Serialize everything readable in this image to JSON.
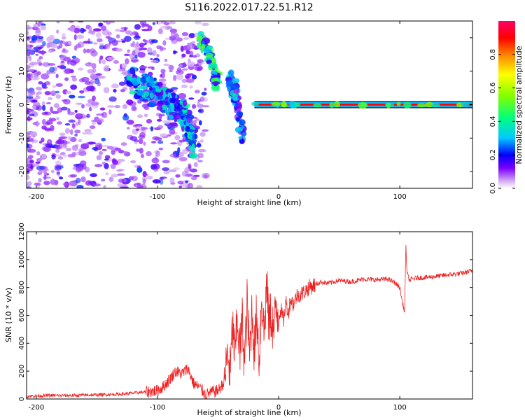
{
  "title": "S116.2022.017.22.51.R12",
  "chart_data": [
    {
      "type": "heatmap",
      "xlabel": "Height of straight line (km)",
      "ylabel": "Frequency (Hz)",
      "xlim": [
        -208,
        160
      ],
      "ylim": [
        -25,
        25
      ],
      "x_ticks": [
        -200,
        -100,
        0,
        100
      ],
      "y_ticks": [
        -20,
        -10,
        0,
        10,
        20
      ],
      "colorbar": {
        "label": "Normalized spectral amplitude",
        "range": [
          0,
          1
        ],
        "ticks": [
          "0.0",
          "0.2",
          "0.4",
          "0.6",
          "0.8"
        ],
        "colormap": [
          "#ffffff",
          "#d8b4f2",
          "#7b00ff",
          "#0000ff",
          "#00c8ff",
          "#00ff80",
          "#80ff00",
          "#ffff00",
          "#ff8000",
          "#ff0000",
          "#ff0066"
        ]
      },
      "features": {
        "constant_line": {
          "frequency_hz": 0,
          "x_start": -20,
          "x_end": 160,
          "amplitude": 0.95
        },
        "ridge_1": {
          "x": [
            -125,
            -100,
            -80,
            -70
          ],
          "frequency_hz": [
            8,
            3,
            -2,
            -12
          ],
          "amplitude": 0.35
        },
        "ridge_2": {
          "x": [
            -65,
            -55,
            -50
          ],
          "frequency_hz": [
            20,
            13,
            6
          ],
          "amplitude": 0.45
        },
        "ridge_3": {
          "x": [
            -40,
            -35,
            -30
          ],
          "frequency_hz": [
            8,
            2,
            -10
          ],
          "amplitude": 0.3
        },
        "noise_region": {
          "x": [
            -208,
            -100
          ],
          "frequency_hz": [
            -25,
            25
          ],
          "amplitude": 0.15
        }
      }
    },
    {
      "type": "line",
      "xlabel": "Height of straight line (km)",
      "ylabel": "SNR (10 * v/v)",
      "xlim": [
        -208,
        160
      ],
      "ylim": [
        0,
        1200
      ],
      "x_ticks": [
        -200,
        -100,
        0,
        100
      ],
      "y_ticks": [
        0,
        200,
        400,
        600,
        800,
        1000,
        1200
      ],
      "series": [
        {
          "color": "#ee2222",
          "x": [
            -208,
            -190,
            -170,
            -150,
            -130,
            -110,
            -100,
            -95,
            -90,
            -85,
            -80,
            -75,
            -70,
            -65,
            -60,
            -55,
            -50,
            -45,
            -42,
            -40,
            -38,
            -36,
            -34,
            -32,
            -30,
            -28,
            -26,
            -24,
            -22,
            -20,
            -18,
            -16,
            -14,
            -12,
            -10,
            -8,
            -6,
            -4,
            -2,
            0,
            2,
            4,
            6,
            8,
            10,
            12,
            15,
            20,
            25,
            30,
            35,
            40,
            50,
            60,
            70,
            80,
            90,
            95,
            100,
            102,
            104,
            105,
            106,
            108,
            110,
            115,
            120,
            130,
            140,
            150,
            160
          ],
          "y": [
            20,
            25,
            25,
            30,
            35,
            50,
            60,
            90,
            140,
            200,
            180,
            220,
            110,
            80,
            30,
            50,
            60,
            120,
            320,
            180,
            520,
            300,
            600,
            320,
            560,
            250,
            700,
            300,
            650,
            350,
            620,
            280,
            760,
            450,
            820,
            560,
            600,
            480,
            650,
            600,
            640,
            560,
            700,
            620,
            720,
            680,
            740,
            760,
            800,
            820,
            840,
            830,
            850,
            840,
            860,
            855,
            860,
            840,
            800,
            700,
            620,
            1100,
            900,
            850,
            860,
            870,
            870,
            880,
            890,
            900,
            920
          ]
        }
      ]
    }
  ]
}
